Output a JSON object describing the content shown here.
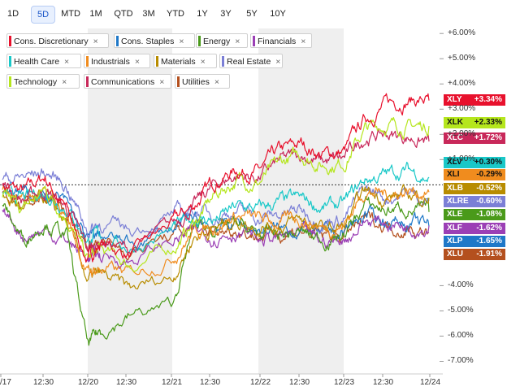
{
  "tabs": [
    {
      "label": "1D",
      "active": false
    },
    {
      "label": "5D",
      "active": true
    },
    {
      "label": "MTD",
      "active": false
    },
    {
      "label": "1M",
      "active": false
    },
    {
      "label": "QTD",
      "active": false
    },
    {
      "label": "3M",
      "active": false
    },
    {
      "label": "YTD",
      "active": false
    },
    {
      "label": "1Y",
      "active": false
    },
    {
      "label": "3Y",
      "active": false
    },
    {
      "label": "5Y",
      "active": false
    },
    {
      "label": "10Y",
      "active": false
    }
  ],
  "legend": [
    {
      "label": "Cons. Discretionary",
      "color": "#e8112d"
    },
    {
      "label": "Cons. Staples",
      "color": "#1f78c8"
    },
    {
      "label": "Energy",
      "color": "#4a9a1a"
    },
    {
      "label": "Financials",
      "color": "#9b3fb5"
    },
    {
      "label": "Health Care",
      "color": "#19c8c8"
    },
    {
      "label": "Industrials",
      "color": "#f08c1e"
    },
    {
      "label": "Materials",
      "color": "#b88c00"
    },
    {
      "label": "Real Estate",
      "color": "#7b7fd6"
    },
    {
      "label": "Technology",
      "color": "#b5e61d"
    },
    {
      "label": "Communications",
      "color": "#c8285a"
    },
    {
      "label": "Utilities",
      "color": "#b4501e"
    }
  ],
  "legend_close_symbol": "×",
  "chart_data": {
    "type": "line",
    "x_ticks": [
      "/17",
      "12:30",
      "12/20",
      "12:30",
      "12/21",
      "12:30",
      "12/22",
      "12:30",
      "12/23",
      "12:30",
      "12/24"
    ],
    "y_ticks": [
      "+6.00%",
      "+5.00%",
      "+4.00%",
      "+3.00%",
      "+2.00%",
      "+1.00%",
      "-4.00%",
      "-5.00%",
      "-6.00%",
      "-7.00%"
    ],
    "ylim": [
      -7.5,
      6.2
    ],
    "baseline": 0,
    "series": [
      {
        "name": "XLY",
        "label": "+3.34%",
        "final": 3.34,
        "color": "#e8112d",
        "text_color": "#ffffff",
        "anchors": [
          [
            0,
            0.0
          ],
          [
            0.5,
            -0.3
          ],
          [
            1.0,
            0.3
          ],
          [
            1.5,
            -1.0
          ],
          [
            2.0,
            -3.0
          ],
          [
            2.3,
            -2.3
          ],
          [
            3.0,
            -2.8
          ],
          [
            4.0,
            -1.5
          ],
          [
            4.5,
            -0.8
          ],
          [
            5.0,
            0.2
          ],
          [
            5.5,
            0.6
          ],
          [
            6.0,
            0.5
          ],
          [
            6.5,
            1.3
          ],
          [
            7.0,
            1.6
          ],
          [
            7.5,
            1.2
          ],
          [
            8.0,
            1.3
          ],
          [
            8.5,
            2.6
          ],
          [
            9.0,
            3.2
          ],
          [
            9.5,
            3.4
          ],
          [
            10.0,
            3.34
          ]
        ]
      },
      {
        "name": "XLK",
        "label": "+2.33%",
        "final": 2.33,
        "color": "#b5e61d",
        "text_color": "#111111",
        "anchors": [
          [
            0,
            -0.5
          ],
          [
            0.5,
            -1.0
          ],
          [
            1.0,
            -0.2
          ],
          [
            1.5,
            -1.2
          ],
          [
            2.0,
            -3.0
          ],
          [
            2.3,
            -2.6
          ],
          [
            3.0,
            -3.2
          ],
          [
            4.0,
            -2.5
          ],
          [
            4.5,
            -1.5
          ],
          [
            5.0,
            -0.4
          ],
          [
            5.5,
            0.2
          ],
          [
            6.0,
            0.1
          ],
          [
            6.5,
            0.8
          ],
          [
            7.0,
            1.2
          ],
          [
            7.5,
            0.8
          ],
          [
            8.0,
            0.9
          ],
          [
            8.5,
            2.2
          ],
          [
            9.0,
            2.4
          ],
          [
            9.5,
            2.3
          ],
          [
            10.0,
            2.33
          ]
        ]
      },
      {
        "name": "XLC",
        "label": "+1.72%",
        "final": 1.72,
        "color": "#c8285a",
        "text_color": "#ffffff",
        "anchors": [
          [
            0,
            0.0
          ],
          [
            0.5,
            -0.6
          ],
          [
            1.0,
            -0.2
          ],
          [
            1.5,
            -0.9
          ],
          [
            2.0,
            -2.6
          ],
          [
            2.3,
            -2.2
          ],
          [
            3.0,
            -2.6
          ],
          [
            4.0,
            -1.6
          ],
          [
            4.5,
            -0.8
          ],
          [
            5.0,
            0.0
          ],
          [
            5.5,
            0.4
          ],
          [
            6.0,
            0.3
          ],
          [
            6.5,
            0.9
          ],
          [
            7.0,
            1.2
          ],
          [
            7.5,
            0.9
          ],
          [
            8.0,
            1.0
          ],
          [
            8.5,
            1.9
          ],
          [
            9.0,
            2.0
          ],
          [
            9.5,
            1.9
          ],
          [
            10.0,
            1.72
          ]
        ]
      },
      {
        "name": "XLV",
        "label": "+0.30%",
        "final": 0.3,
        "color": "#19c8c8",
        "text_color": "#111111",
        "anchors": [
          [
            0,
            -0.3
          ],
          [
            0.5,
            -0.6
          ],
          [
            1.0,
            -0.3
          ],
          [
            1.5,
            -0.8
          ],
          [
            2.0,
            -2.2
          ],
          [
            2.3,
            -2.0
          ],
          [
            3.0,
            -2.5
          ],
          [
            4.0,
            -1.8
          ],
          [
            4.5,
            -1.3
          ],
          [
            5.0,
            -1.4
          ],
          [
            5.5,
            -0.9
          ],
          [
            6.0,
            -1.0
          ],
          [
            6.5,
            -0.7
          ],
          [
            7.0,
            -0.6
          ],
          [
            7.5,
            -0.9
          ],
          [
            8.0,
            -0.8
          ],
          [
            8.5,
            0.2
          ],
          [
            9.0,
            0.4
          ],
          [
            9.5,
            0.6
          ],
          [
            10.0,
            0.3
          ]
        ]
      },
      {
        "name": "XLI",
        "label": "-0.29%",
        "final": -0.29,
        "color": "#f08c1e",
        "text_color": "#111111",
        "anchors": [
          [
            0,
            -0.2
          ],
          [
            0.5,
            -0.8
          ],
          [
            1.0,
            -0.4
          ],
          [
            1.5,
            -1.2
          ],
          [
            2.0,
            -3.5
          ],
          [
            2.3,
            -3.3
          ],
          [
            3.0,
            -3.6
          ],
          [
            4.0,
            -2.8
          ],
          [
            4.5,
            -1.8
          ],
          [
            5.0,
            -1.6
          ],
          [
            5.5,
            -1.2
          ],
          [
            6.0,
            -1.4
          ],
          [
            6.5,
            -1.5
          ],
          [
            7.0,
            -1.3
          ],
          [
            7.5,
            -1.7
          ],
          [
            8.0,
            -1.6
          ],
          [
            8.5,
            -0.2
          ],
          [
            9.0,
            -0.4
          ],
          [
            9.5,
            -0.2
          ],
          [
            10.0,
            -0.29
          ]
        ]
      },
      {
        "name": "XLB",
        "label": "-0.52%",
        "final": -0.52,
        "color": "#b88c00",
        "text_color": "#ffffff",
        "anchors": [
          [
            0,
            -0.4
          ],
          [
            0.5,
            -1.0
          ],
          [
            1.0,
            -0.6
          ],
          [
            1.5,
            -1.5
          ],
          [
            2.0,
            -3.8
          ],
          [
            2.3,
            -3.6
          ],
          [
            3.0,
            -4.2
          ],
          [
            4.0,
            -3.6
          ],
          [
            4.5,
            -2.0
          ],
          [
            5.0,
            -1.7
          ],
          [
            5.5,
            -1.4
          ],
          [
            6.0,
            -1.6
          ],
          [
            6.5,
            -1.6
          ],
          [
            7.0,
            -1.4
          ],
          [
            7.5,
            -1.8
          ],
          [
            8.0,
            -1.7
          ],
          [
            8.5,
            -0.3
          ],
          [
            9.0,
            -0.5
          ],
          [
            9.5,
            -0.4
          ],
          [
            10.0,
            -0.52
          ]
        ]
      },
      {
        "name": "XLRE",
        "label": "-0.60%",
        "final": -0.6,
        "color": "#7b7fd6",
        "text_color": "#ffffff",
        "anchors": [
          [
            0,
            0.2
          ],
          [
            0.5,
            0.3
          ],
          [
            1.0,
            0.5
          ],
          [
            1.5,
            0.0
          ],
          [
            2.0,
            -1.8
          ],
          [
            2.3,
            -1.5
          ],
          [
            3.0,
            -1.8
          ],
          [
            4.0,
            -1.2
          ],
          [
            4.5,
            -1.0
          ],
          [
            5.0,
            -1.2
          ],
          [
            5.5,
            -1.0
          ],
          [
            6.0,
            -1.3
          ],
          [
            6.5,
            -1.2
          ],
          [
            7.0,
            -1.0
          ],
          [
            7.5,
            -1.4
          ],
          [
            8.0,
            -1.3
          ],
          [
            8.5,
            -0.2
          ],
          [
            9.0,
            -0.5
          ],
          [
            9.5,
            -0.3
          ],
          [
            10.0,
            -0.6
          ]
        ]
      },
      {
        "name": "XLE",
        "label": "-1.08%",
        "final": -1.08,
        "color": "#4a9a1a",
        "text_color": "#ffffff",
        "anchors": [
          [
            0,
            -0.8
          ],
          [
            0.5,
            -2.2
          ],
          [
            1.0,
            -1.4
          ],
          [
            1.5,
            -2.0
          ],
          [
            2.0,
            -6.4
          ],
          [
            2.3,
            -5.8
          ],
          [
            3.0,
            -5.2
          ],
          [
            4.0,
            -4.8
          ],
          [
            4.5,
            -1.6
          ],
          [
            5.0,
            -1.7
          ],
          [
            5.5,
            -1.6
          ],
          [
            6.0,
            -2.0
          ],
          [
            6.5,
            -2.0
          ],
          [
            7.0,
            -1.9
          ],
          [
            7.5,
            -2.2
          ],
          [
            8.0,
            -2.0
          ],
          [
            8.5,
            -0.8
          ],
          [
            9.0,
            -1.0
          ],
          [
            9.5,
            -0.9
          ],
          [
            10.0,
            -1.08
          ]
        ]
      },
      {
        "name": "XLF",
        "label": "-1.62%",
        "final": -1.62,
        "color": "#9b3fb5",
        "text_color": "#ffffff",
        "anchors": [
          [
            0,
            -1.0
          ],
          [
            0.5,
            -2.0
          ],
          [
            1.0,
            -1.8
          ],
          [
            1.5,
            -2.2
          ],
          [
            2.0,
            -2.9
          ],
          [
            2.3,
            -2.8
          ],
          [
            3.0,
            -3.0
          ],
          [
            4.0,
            -2.2
          ],
          [
            4.5,
            -1.9
          ],
          [
            5.0,
            -2.0
          ],
          [
            5.5,
            -1.8
          ],
          [
            6.0,
            -2.2
          ],
          [
            6.5,
            -2.1
          ],
          [
            7.0,
            -2.0
          ],
          [
            7.5,
            -2.3
          ],
          [
            8.0,
            -2.2
          ],
          [
            8.5,
            -1.4
          ],
          [
            9.0,
            -1.5
          ],
          [
            9.5,
            -1.6
          ],
          [
            10.0,
            -1.62
          ]
        ]
      },
      {
        "name": "XLP",
        "label": "-1.65%",
        "final": -1.65,
        "color": "#1f78c8",
        "text_color": "#ffffff",
        "anchors": [
          [
            0,
            0.0
          ],
          [
            0.5,
            -0.4
          ],
          [
            1.0,
            -0.3
          ],
          [
            1.5,
            -0.8
          ],
          [
            2.0,
            -2.2
          ],
          [
            2.3,
            -2.0
          ],
          [
            3.0,
            -2.4
          ],
          [
            4.0,
            -1.7
          ],
          [
            4.5,
            -1.4
          ],
          [
            5.0,
            -1.6
          ],
          [
            5.5,
            -1.5
          ],
          [
            6.0,
            -1.8
          ],
          [
            6.5,
            -1.8
          ],
          [
            7.0,
            -1.7
          ],
          [
            7.5,
            -2.0
          ],
          [
            8.0,
            -1.9
          ],
          [
            8.5,
            -1.2
          ],
          [
            9.0,
            -1.4
          ],
          [
            9.5,
            -1.5
          ],
          [
            10.0,
            -1.65
          ]
        ]
      },
      {
        "name": "XLU",
        "label": "-1.91%",
        "final": -1.91,
        "color": "#b4501e",
        "text_color": "#ffffff",
        "anchors": [
          [
            0,
            -0.3
          ],
          [
            0.5,
            -0.7
          ],
          [
            1.0,
            -0.6
          ],
          [
            1.5,
            -1.1
          ],
          [
            2.0,
            -2.4
          ],
          [
            2.3,
            -2.2
          ],
          [
            3.0,
            -2.6
          ],
          [
            4.0,
            -2.0
          ],
          [
            4.5,
            -1.7
          ],
          [
            5.0,
            -1.9
          ],
          [
            5.5,
            -1.7
          ],
          [
            6.0,
            -2.0
          ],
          [
            6.5,
            -1.9
          ],
          [
            7.0,
            -1.8
          ],
          [
            7.5,
            -2.1
          ],
          [
            8.0,
            -2.0
          ],
          [
            8.5,
            -1.4
          ],
          [
            9.0,
            -1.6
          ],
          [
            9.5,
            -1.7
          ],
          [
            10.0,
            -1.91
          ]
        ]
      }
    ]
  }
}
